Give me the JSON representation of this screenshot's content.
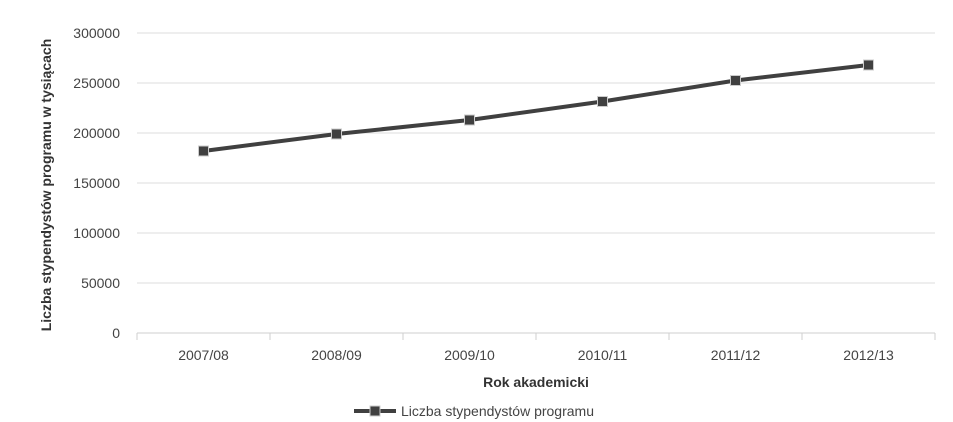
{
  "chart_data": {
    "type": "line",
    "categories": [
      "2007/08",
      "2008/09",
      "2009/10",
      "2010/11",
      "2011/12",
      "2012/13"
    ],
    "series": [
      {
        "name": "Liczba stypendystów programu",
        "values": [
          182000,
          199000,
          213000,
          231500,
          252500,
          268000
        ],
        "color": "#404040",
        "marker": "square"
      }
    ],
    "xlabel": "Rok akademicki",
    "ylabel": "Liczba stypendystów programu w tysiącach",
    "ylim": [
      0,
      300000
    ],
    "yticks": [
      "0",
      "50000",
      "100000",
      "150000",
      "200000",
      "250000",
      "300000"
    ],
    "ytick_values": [
      0,
      50000,
      100000,
      150000,
      200000,
      250000,
      300000
    ],
    "grid": true,
    "legend_position": "bottom-center"
  }
}
